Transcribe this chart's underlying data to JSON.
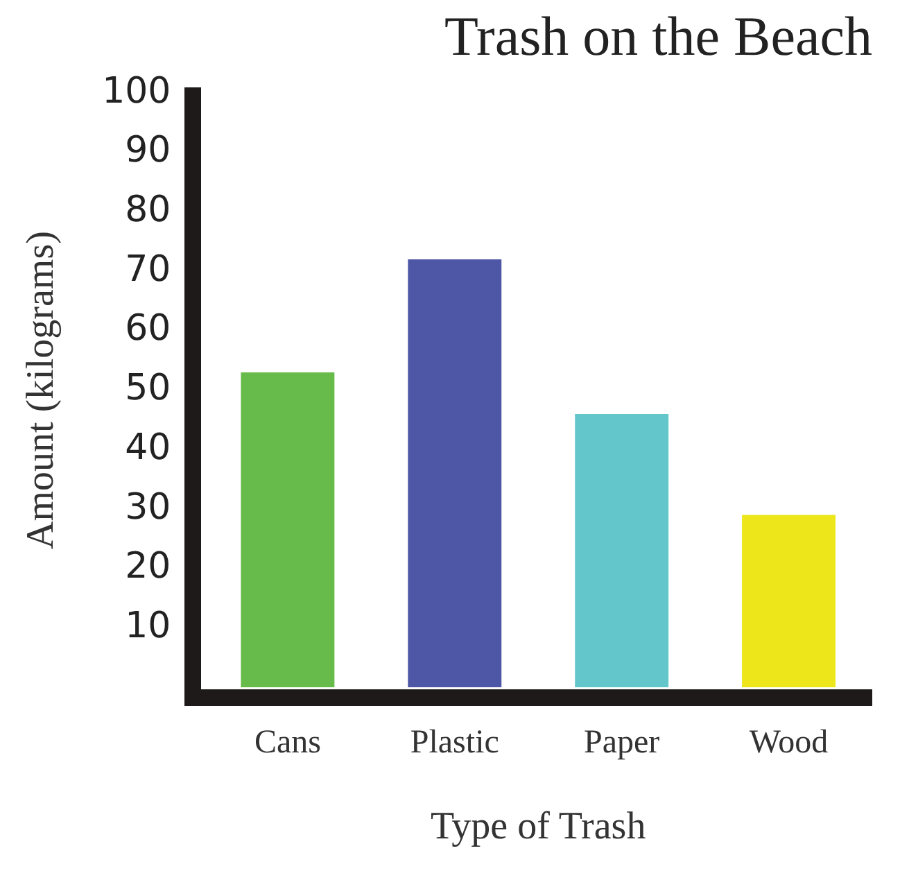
{
  "chart_data": {
    "type": "bar",
    "title": "Trash on the Beach",
    "xlabel": "Type of Trash",
    "ylabel": "Amount (kilograms)",
    "categories": [
      "Cans",
      "Plastic",
      "Paper",
      "Wood"
    ],
    "values": [
      53,
      72,
      46,
      29
    ],
    "colors": [
      "#66bb4a",
      "#4e56a6",
      "#62c6cb",
      "#ede61a"
    ],
    "ylim": [
      0,
      100
    ],
    "yticks": [
      10,
      20,
      30,
      40,
      50,
      60,
      70,
      80,
      90,
      100
    ],
    "grid": false,
    "legend": false
  }
}
